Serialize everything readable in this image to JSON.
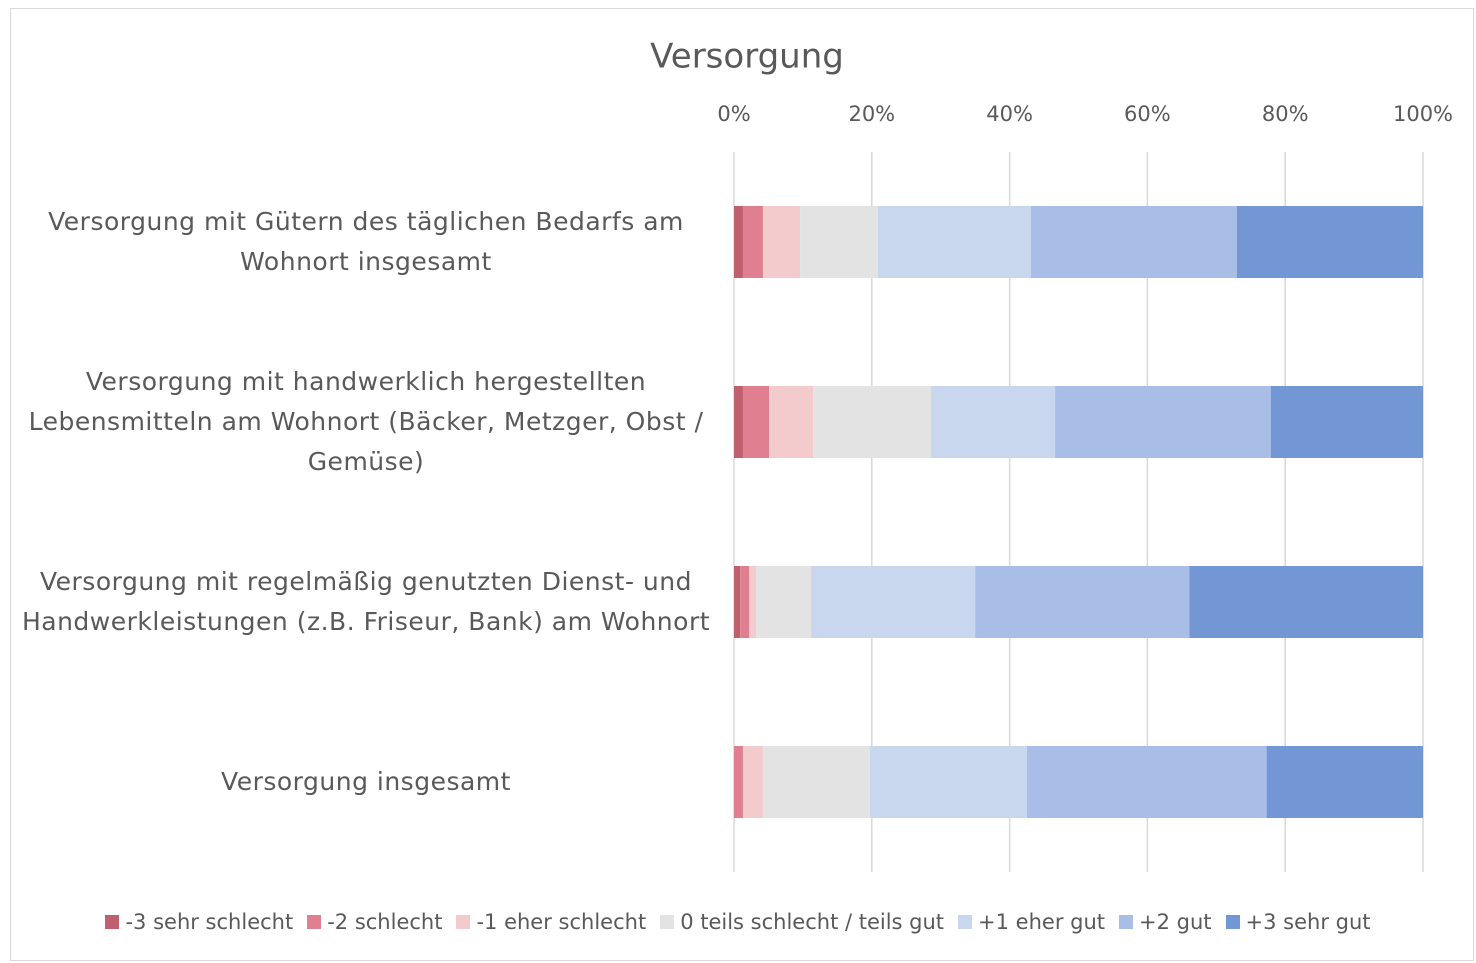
{
  "chart_data": {
    "type": "stacked_barh",
    "title": "Versorgung",
    "categories": [
      "Versorgung mit Gütern des täglichen Bedarfs am Wohnort insgesamt",
      "Versorgung mit handwerklich hergestellten Lebensmitteln am Wohnort (Bäcker, Metzger, Obst / Gemüse)",
      "Versorgung mit regelmäßig genutzten Dienst- und Handwerkleistungen (z.B. Friseur, Bank) am Wohnort",
      "Versorgung insgesamt"
    ],
    "series": [
      {
        "name": "-3 sehr schlecht",
        "color": "#c0606e",
        "values": [
          1.3,
          1.3,
          0.9,
          0
        ]
      },
      {
        "name": "-2 schlecht",
        "color": "#e07f8f",
        "values": [
          2.9,
          3.8,
          1.3,
          1.3
        ]
      },
      {
        "name": "-1 eher schlecht",
        "color": "#f4cbcd",
        "values": [
          5.4,
          6.4,
          1.0,
          2.9
        ]
      },
      {
        "name": "0 teils schlecht / teils gut",
        "color": "#e3e3e3",
        "values": [
          11.3,
          17.1,
          8.0,
          15.5
        ]
      },
      {
        "name": "+1 eher gut",
        "color": "#c8d6ee",
        "values": [
          22.2,
          18.0,
          23.8,
          22.8
        ]
      },
      {
        "name": "+2 gut",
        "color": "#a9bee6",
        "values": [
          29.9,
          31.3,
          31.1,
          34.8
        ]
      },
      {
        "name": "+3 sehr gut",
        "color": "#7396d4",
        "values": [
          27.0,
          22.1,
          33.9,
          22.7
        ]
      }
    ],
    "xlim": [
      0,
      100
    ],
    "xticks": [
      {
        "value": 0,
        "label": "0%"
      },
      {
        "value": 20,
        "label": "20%"
      },
      {
        "value": 40,
        "label": "40%"
      },
      {
        "value": 60,
        "label": "60%"
      },
      {
        "value": 80,
        "label": "80%"
      },
      {
        "value": 100,
        "label": "100%"
      }
    ],
    "grid": true,
    "legend": "bottom"
  }
}
